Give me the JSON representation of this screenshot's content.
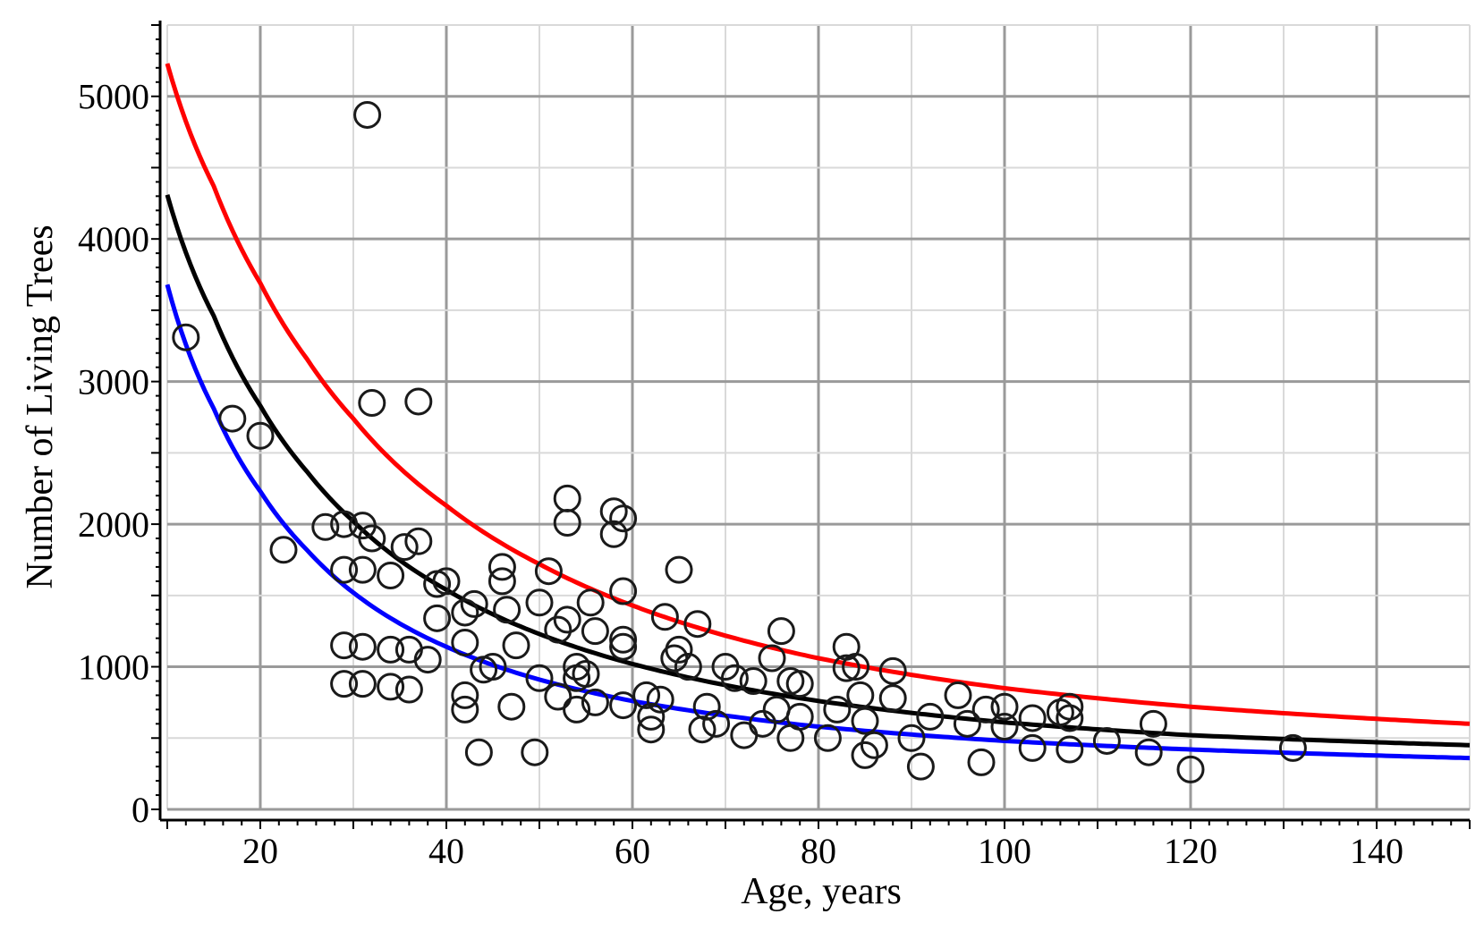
{
  "chart_data": {
    "type": "scatter",
    "title": "",
    "xlabel": "Age, years",
    "ylabel": "Number of Living Trees",
    "xlim": [
      10,
      150
    ],
    "ylim": [
      0,
      5500
    ],
    "x_ticks": [
      20,
      40,
      60,
      80,
      100,
      120,
      140
    ],
    "y_ticks": [
      0,
      1000,
      2000,
      3000,
      4000,
      5000
    ],
    "x_tick_labels": [
      "20",
      "40",
      "60",
      "80",
      "100",
      "120",
      "140"
    ],
    "y_tick_labels": [
      "0",
      "1000",
      "2000",
      "3000",
      "4000",
      "5000"
    ],
    "grid": true,
    "points": [
      [
        12,
        3310
      ],
      [
        17,
        2740
      ],
      [
        20,
        2620
      ],
      [
        22.5,
        1820
      ],
      [
        27,
        1980
      ],
      [
        29,
        2000
      ],
      [
        29,
        1680
      ],
      [
        29,
        1150
      ],
      [
        29,
        880
      ],
      [
        31,
        1990
      ],
      [
        31,
        1680
      ],
      [
        31,
        1140
      ],
      [
        31,
        880
      ],
      [
        32,
        1900
      ],
      [
        32,
        2850
      ],
      [
        31.5,
        4870
      ],
      [
        34,
        1640
      ],
      [
        34,
        1120
      ],
      [
        34,
        860
      ],
      [
        35.5,
        1840
      ],
      [
        36,
        1120
      ],
      [
        36,
        840
      ],
      [
        37,
        1880
      ],
      [
        37,
        2860
      ],
      [
        38,
        1050
      ],
      [
        39,
        1340
      ],
      [
        40,
        1600
      ],
      [
        39,
        1580
      ],
      [
        42,
        1380
      ],
      [
        42,
        1170
      ],
      [
        42,
        800
      ],
      [
        42,
        700
      ],
      [
        43,
        1440
      ],
      [
        43.5,
        400
      ],
      [
        44,
        980
      ],
      [
        45,
        1000
      ],
      [
        46,
        1700
      ],
      [
        46,
        1600
      ],
      [
        46.5,
        1400
      ],
      [
        47,
        720
      ],
      [
        47.5,
        1150
      ],
      [
        49.5,
        400
      ],
      [
        50,
        920
      ],
      [
        50,
        1450
      ],
      [
        51,
        1670
      ],
      [
        52,
        1260
      ],
      [
        52,
        790
      ],
      [
        53,
        2180
      ],
      [
        53,
        2010
      ],
      [
        53,
        1330
      ],
      [
        54,
        1000
      ],
      [
        54,
        920
      ],
      [
        54,
        700
      ],
      [
        55,
        950
      ],
      [
        55.5,
        1450
      ],
      [
        56,
        1250
      ],
      [
        56,
        750
      ],
      [
        58,
        2090
      ],
      [
        58,
        1930
      ],
      [
        59,
        2040
      ],
      [
        59,
        1530
      ],
      [
        59,
        1190
      ],
      [
        59,
        1140
      ],
      [
        59,
        730
      ],
      [
        61.5,
        800
      ],
      [
        62,
        650
      ],
      [
        62,
        560
      ],
      [
        63,
        770
      ],
      [
        63.5,
        1350
      ],
      [
        64.5,
        1060
      ],
      [
        65,
        1680
      ],
      [
        65,
        1120
      ],
      [
        66,
        1000
      ],
      [
        67,
        1300
      ],
      [
        67.5,
        560
      ],
      [
        68,
        720
      ],
      [
        69,
        600
      ],
      [
        70,
        1000
      ],
      [
        71,
        920
      ],
      [
        72,
        520
      ],
      [
        73,
        900
      ],
      [
        74,
        600
      ],
      [
        75,
        1060
      ],
      [
        75.5,
        700
      ],
      [
        76,
        1250
      ],
      [
        77,
        900
      ],
      [
        77,
        500
      ],
      [
        78,
        880
      ],
      [
        78,
        650
      ],
      [
        81,
        500
      ],
      [
        82,
        700
      ],
      [
        83,
        1140
      ],
      [
        83,
        990
      ],
      [
        84,
        1000
      ],
      [
        84.5,
        800
      ],
      [
        85,
        620
      ],
      [
        85,
        380
      ],
      [
        86,
        450
      ],
      [
        88,
        970
      ],
      [
        88,
        780
      ],
      [
        90,
        500
      ],
      [
        91,
        300
      ],
      [
        92,
        650
      ],
      [
        95,
        800
      ],
      [
        96,
        600
      ],
      [
        97.5,
        330
      ],
      [
        98,
        700
      ],
      [
        100,
        720
      ],
      [
        100,
        580
      ],
      [
        103,
        640
      ],
      [
        103,
        430
      ],
      [
        106,
        680
      ],
      [
        107,
        720
      ],
      [
        107,
        640
      ],
      [
        107,
        420
      ],
      [
        111,
        480
      ],
      [
        115.5,
        400
      ],
      [
        116,
        600
      ],
      [
        120,
        280
      ],
      [
        131,
        430
      ]
    ],
    "series": [
      {
        "name": "upper curve",
        "color": "#ff0000",
        "values": {
          "x": [
            10,
            15,
            20,
            25,
            30,
            40,
            50,
            60,
            80,
            100,
            120,
            150
          ],
          "y": [
            5230,
            4370,
            3690,
            3160,
            2740,
            2130,
            1720,
            1430,
            1060,
            850,
            720,
            600
          ]
        }
      },
      {
        "name": "middle curve",
        "color": "#000000",
        "values": {
          "x": [
            10,
            15,
            20,
            25,
            30,
            40,
            50,
            60,
            80,
            100,
            120,
            150
          ],
          "y": [
            4310,
            3460,
            2830,
            2370,
            2020,
            1540,
            1230,
            1020,
            760,
            610,
            520,
            450
          ]
        }
      },
      {
        "name": "lower curve",
        "color": "#0000ff",
        "values": {
          "x": [
            10,
            15,
            20,
            25,
            30,
            40,
            50,
            60,
            80,
            100,
            120,
            150
          ],
          "y": [
            3680,
            2810,
            2230,
            1820,
            1520,
            1140,
            910,
            760,
            580,
            480,
            420,
            360
          ]
        }
      }
    ]
  }
}
